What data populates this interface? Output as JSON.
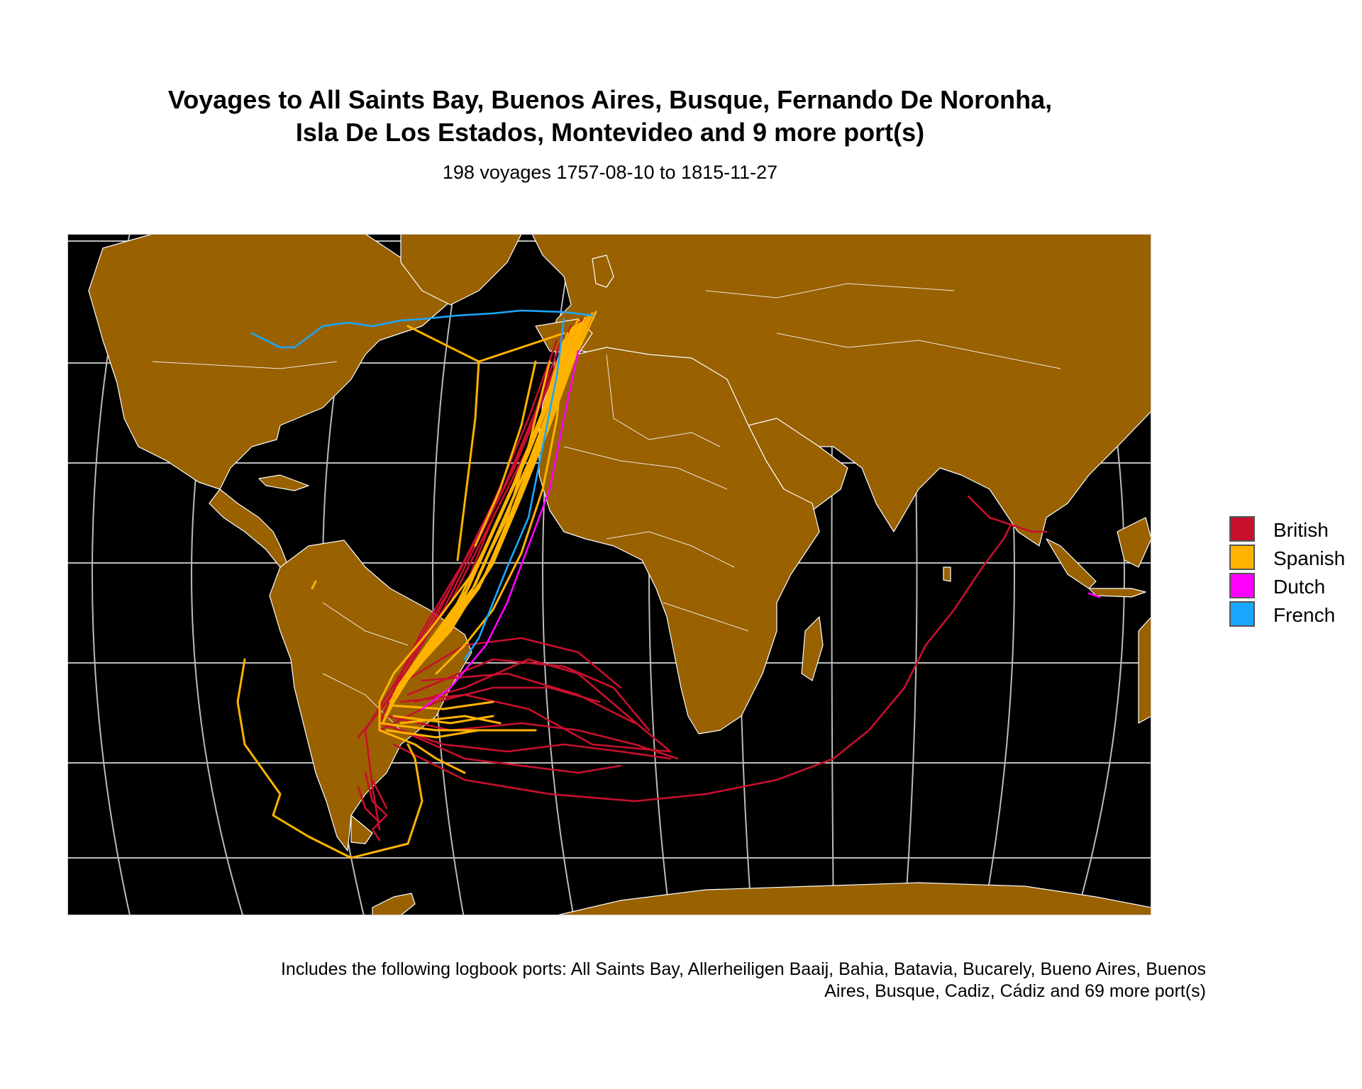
{
  "title": {
    "line1": "Voyages to All Saints Bay, Buenos Aires, Busque, Fernando De Noronha,",
    "line2": "Isla De Los Estados, Montevideo and 9 more port(s)"
  },
  "subtitle": "198 voyages 1757-08-10 to 1815-11-27",
  "legend": [
    {
      "name": "British",
      "color": "#c8102e"
    },
    {
      "name": "Spanish",
      "color": "#ffb300"
    },
    {
      "name": "Dutch",
      "color": "#ff00ff"
    },
    {
      "name": "French",
      "color": "#1aa7ff"
    }
  ],
  "caption": {
    "line1": "Includes the following logbook ports: All Saints Bay, Allerheiligen Baaij, Bahia, Batavia, Bucarely, Bueno Aires, Buenos",
    "line2": "Aires, Busque, Cadiz, Cádiz and 69 more port(s)"
  },
  "map": {
    "ocean_color": "#000000",
    "land_color": "#996100",
    "border_color": "#ffffff",
    "graticule_color": "#bbbbbb"
  }
}
